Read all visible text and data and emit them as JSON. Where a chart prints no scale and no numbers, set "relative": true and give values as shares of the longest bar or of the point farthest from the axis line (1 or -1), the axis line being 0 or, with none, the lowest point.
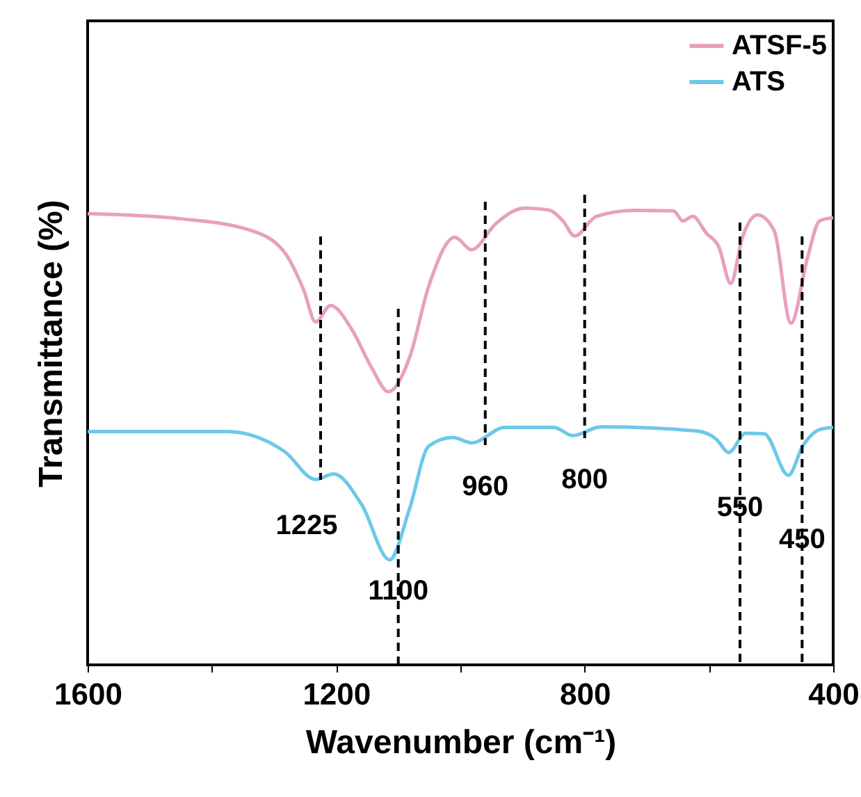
{
  "chart_data": {
    "type": "line",
    "relative": true,
    "xlabel": "Wavenumber (cm⁻¹)",
    "ylabel": "Transmittance (%)",
    "xlim": [
      1600,
      400
    ],
    "xticks": [
      1600,
      {
        "value": 1400,
        "label": null
      },
      1200,
      {
        "value": 1000,
        "label": null
      },
      800,
      {
        "value": 600,
        "label": null
      },
      400
    ],
    "legend": "top right",
    "grid": false,
    "series": [
      {
        "name": "ATSF-5",
        "color": "#e8a0c0",
        "x": [
          1600,
          1452,
          1337,
          1283,
          1252,
          1233,
          1209,
          1175,
          1143,
          1116,
          1082,
          1051,
          1009,
          982,
          943,
          897,
          858,
          835,
          816,
          781,
          719,
          657,
          642,
          626,
          604,
          584,
          565,
          546,
          522,
          495,
          468,
          441,
          422,
          400
        ],
        "values": [
          0.988,
          0.977,
          0.951,
          0.903,
          0.82,
          0.751,
          0.787,
          0.735,
          0.651,
          0.598,
          0.672,
          0.829,
          0.936,
          0.909,
          0.966,
          1.0,
          0.996,
          0.972,
          0.939,
          0.982,
          0.995,
          0.994,
          0.972,
          0.982,
          0.945,
          0.915,
          0.835,
          0.936,
          0.985,
          0.951,
          0.748,
          0.893,
          0.972,
          0.979
        ]
      },
      {
        "name": "ATS",
        "color": "#6ec8e8",
        "x": [
          1600,
          1376,
          1283,
          1233,
          1204,
          1159,
          1114,
          1082,
          1051,
          1012,
          982,
          928,
          850,
          819,
          774,
          619,
          588,
          568,
          541,
          511,
          472,
          449,
          422,
          400
        ],
        "values": [
          0.511,
          0.511,
          0.467,
          0.406,
          0.418,
          0.351,
          0.23,
          0.341,
          0.479,
          0.498,
          0.486,
          0.52,
          0.52,
          0.502,
          0.521,
          0.512,
          0.494,
          0.465,
          0.507,
          0.506,
          0.415,
          0.479,
          0.515,
          0.52
        ]
      }
    ],
    "ref_lines": [
      {
        "axis": "x",
        "value": 1225,
        "label": "1225",
        "line_style": "dashed"
      },
      {
        "axis": "x",
        "value": 1100,
        "label": "1100",
        "line_style": "dashed"
      },
      {
        "axis": "x",
        "value": 960,
        "label": "960",
        "line_style": "dashed"
      },
      {
        "axis": "x",
        "value": 800,
        "label": "800",
        "line_style": "dashed"
      },
      {
        "axis": "x",
        "value": 550,
        "label": "550",
        "line_style": "dashed"
      },
      {
        "axis": "x",
        "value": 450,
        "label": "450",
        "line_style": "dashed"
      }
    ]
  }
}
